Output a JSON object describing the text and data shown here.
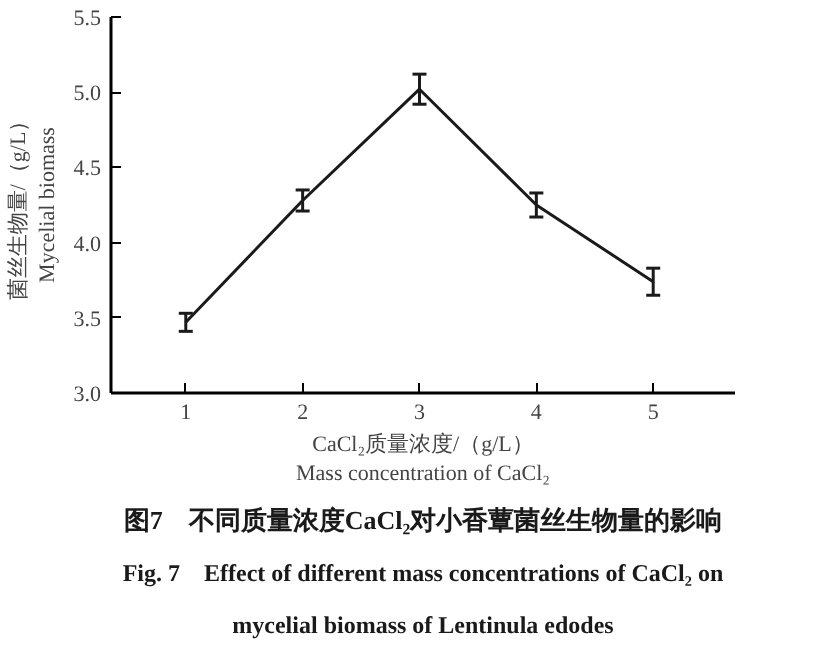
{
  "chart_data": {
    "type": "line",
    "title": "图7　不同质量浓度CaCl₂对小香蕈菌丝生物量的影响",
    "subtitle": "Fig. 7　Effect of different mass concentrations of CaCl₂ on mycelial biomass of Lentinula edodes",
    "xlabel": "CaCl₂质量浓度/（g/L）\nMass concentration of CaCl₂",
    "ylabel": "菌丝生物量/（g/L）\nMycelial biomass",
    "x": [
      1,
      2,
      3,
      4,
      5
    ],
    "series": [
      {
        "color": "#1a1a1a",
        "values": [
          3.47,
          4.28,
          5.02,
          4.25,
          3.74
        ],
        "errors": [
          0.06,
          0.07,
          0.1,
          0.08,
          0.09
        ]
      }
    ],
    "xlim": [
      0.36,
      5.7
    ],
    "xticks": [
      1,
      2,
      3,
      4,
      5
    ],
    "ylim": [
      3.0,
      5.5
    ],
    "yticks": [
      {
        "value": 3.0,
        "label": "3.0"
      },
      {
        "value": 3.5,
        "label": "3.5"
      },
      {
        "value": 4.0,
        "label": "4.0"
      },
      {
        "value": 4.5,
        "label": "4.5"
      },
      {
        "value": 5.0,
        "label": "5.0"
      },
      {
        "value": 5.5,
        "label": "5.5"
      }
    ],
    "grid": false,
    "marker": "none",
    "line_style": "solid"
  }
}
